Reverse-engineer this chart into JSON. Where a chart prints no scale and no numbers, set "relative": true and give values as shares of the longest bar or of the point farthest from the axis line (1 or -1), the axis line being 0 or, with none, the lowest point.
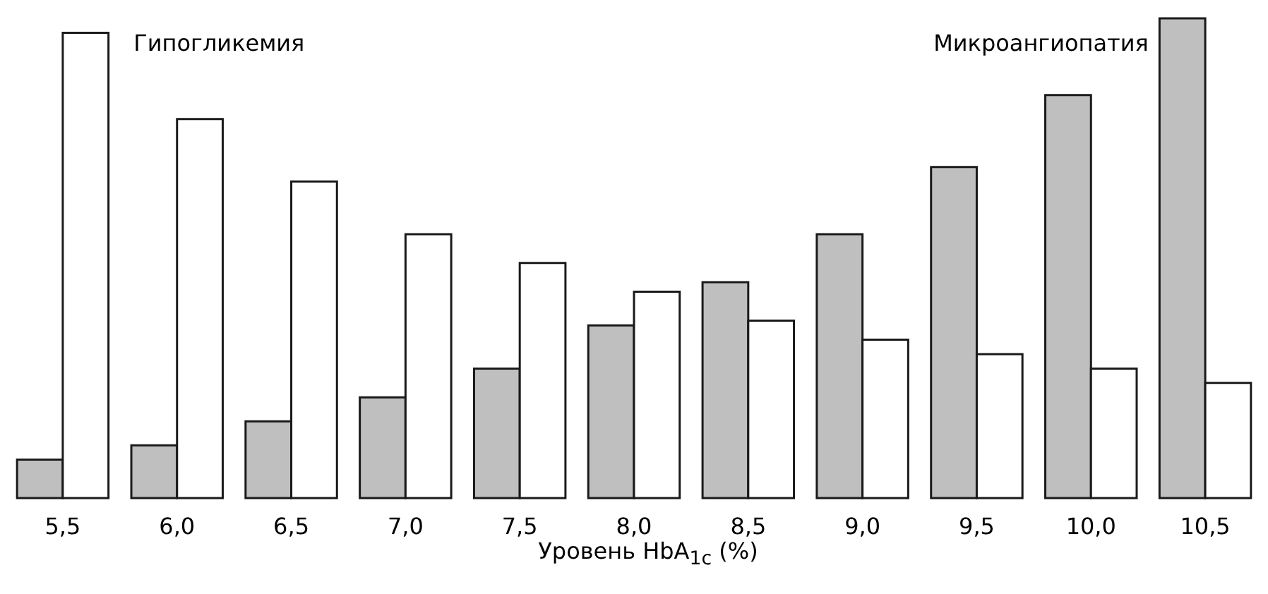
{
  "chart_data": {
    "type": "bar",
    "relative": true,
    "xlabel": "Уровень HbA$_{1c}$ (%)",
    "categories": [
      "5,5",
      "6,0",
      "6,5",
      "7,0",
      "7,5",
      "8,0",
      "8,5",
      "9,0",
      "9,5",
      "10,0",
      "10,5"
    ],
    "legend": false,
    "series": [
      {
        "name": "Микроангиопатия",
        "color": "#bfbfbf",
        "values": [
          0.08,
          0.11,
          0.16,
          0.21,
          0.27,
          0.36,
          0.45,
          0.55,
          0.69,
          0.84,
          1
        ]
      },
      {
        "name": "Гипогликемия",
        "color": "#ffffff",
        "values": [
          0.97,
          0.79,
          0.66,
          0.55,
          0.49,
          0.43,
          0.37,
          0.33,
          0.3,
          0.27,
          0.24
        ]
      }
    ]
  }
}
